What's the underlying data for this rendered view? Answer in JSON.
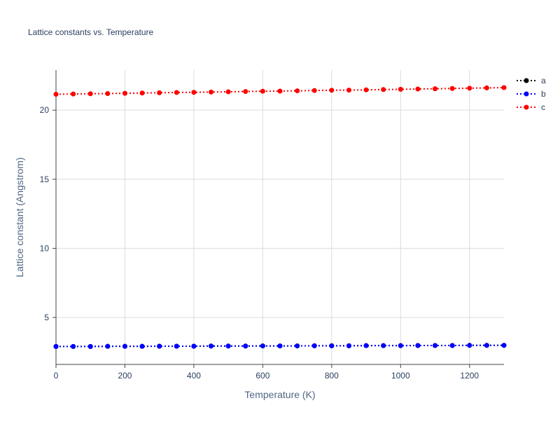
{
  "chart_data": {
    "type": "line",
    "title": "Lattice constants vs. Temperature",
    "xlabel": "Temperature (K)",
    "ylabel": "Lattice constant (Angstrom)",
    "xlim": [
      0,
      1300
    ],
    "ylim": [
      1.6,
      22.9
    ],
    "x_ticks": [
      0,
      200,
      400,
      600,
      800,
      1000,
      1200
    ],
    "y_ticks": [
      5,
      10,
      15,
      20
    ],
    "grid": true,
    "legend_position": "top-right",
    "line_style": "dotted",
    "markers": true,
    "x": [
      0,
      50,
      100,
      150,
      200,
      250,
      300,
      350,
      400,
      450,
      500,
      550,
      600,
      650,
      700,
      750,
      800,
      850,
      900,
      950,
      1000,
      1050,
      1100,
      1150,
      1200,
      1250,
      1300
    ],
    "series": [
      {
        "name": "a",
        "color": "#000000",
        "values": [
          2.9,
          2.9,
          2.9,
          2.91,
          2.91,
          2.91,
          2.92,
          2.92,
          2.92,
          2.93,
          2.93,
          2.93,
          2.94,
          2.94,
          2.94,
          2.95,
          2.95,
          2.95,
          2.96,
          2.96,
          2.96,
          2.97,
          2.97,
          2.97,
          2.98,
          2.98,
          2.98
        ]
      },
      {
        "name": "b",
        "color": "#0000ff",
        "values": [
          2.9,
          2.9,
          2.9,
          2.91,
          2.91,
          2.91,
          2.92,
          2.92,
          2.92,
          2.93,
          2.93,
          2.93,
          2.94,
          2.94,
          2.94,
          2.95,
          2.95,
          2.95,
          2.96,
          2.96,
          2.96,
          2.97,
          2.97,
          2.97,
          2.98,
          2.98,
          2.98
        ]
      },
      {
        "name": "c",
        "color": "#ff0000",
        "values": [
          21.15,
          21.17,
          21.19,
          21.2,
          21.22,
          21.24,
          21.26,
          21.28,
          21.29,
          21.31,
          21.33,
          21.35,
          21.37,
          21.38,
          21.4,
          21.42,
          21.44,
          21.45,
          21.47,
          21.49,
          21.51,
          21.53,
          21.55,
          21.57,
          21.59,
          21.61,
          21.63
        ]
      }
    ]
  }
}
